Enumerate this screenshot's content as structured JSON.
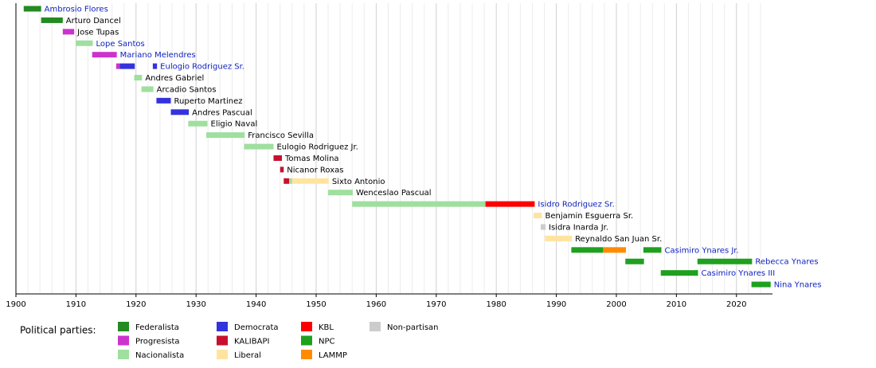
{
  "chart_data": {
    "type": "timeline",
    "xlim": [
      1900,
      2026
    ],
    "xticks": [
      1900,
      1910,
      1920,
      1930,
      1940,
      1950,
      1960,
      1970,
      1980,
      1990,
      2000,
      2010,
      2020
    ],
    "minor_xticks": [
      1902,
      1904,
      1906,
      1908,
      1912,
      1914,
      1916,
      1918,
      1922,
      1924,
      1926,
      1928,
      1932,
      1934,
      1936,
      1938,
      1942,
      1944,
      1946,
      1948,
      1952,
      1954,
      1956,
      1958,
      1962,
      1964,
      1966,
      1968,
      1972,
      1974,
      1976,
      1978,
      1982,
      1984,
      1986,
      1988,
      1992,
      1994,
      1996,
      1998,
      2002,
      2004,
      2006,
      2008,
      2012,
      2014,
      2016,
      2018,
      2022,
      2024
    ],
    "grid": true,
    "legend_title": "Political parties:",
    "parties": [
      {
        "name": "Federalista",
        "color": "#228b22"
      },
      {
        "name": "Progresista",
        "color": "#cc33cc"
      },
      {
        "name": "Nacionalista",
        "color": "#9fdf9f"
      },
      {
        "name": "Democrata",
        "color": "#3333dd"
      },
      {
        "name": "KALIBAPI",
        "color": "#c8102e"
      },
      {
        "name": "Liberal",
        "color": "#ffe4a0"
      },
      {
        "name": "KBL",
        "color": "#ff0000"
      },
      {
        "name": "NPC",
        "color": "#1fa01f"
      },
      {
        "name": "LAMMP",
        "color": "#ff8c00"
      },
      {
        "name": "Non-partisan",
        "color": "#cccccc"
      }
    ],
    "rows": [
      {
        "name": "Ambrosio Flores",
        "linked": true,
        "segments": [
          {
            "start": 1901.3,
            "end": 1904.2,
            "party": 0
          }
        ]
      },
      {
        "name": "Arturo Dancel",
        "linked": false,
        "segments": [
          {
            "start": 1904.2,
            "end": 1907.8,
            "party": 0
          }
        ]
      },
      {
        "name": "Jose Tupas",
        "linked": false,
        "segments": [
          {
            "start": 1907.8,
            "end": 1909.7,
            "party": 1
          }
        ]
      },
      {
        "name": "Lope Santos",
        "linked": true,
        "segments": [
          {
            "start": 1910,
            "end": 1912.8,
            "party": 2
          }
        ]
      },
      {
        "name": "Mariano Melendres",
        "linked": true,
        "segments": [
          {
            "start": 1912.7,
            "end": 1916.8,
            "party": 1
          }
        ]
      },
      {
        "name": "Eulogio Rodriguez Sr.",
        "linked": true,
        "segments": [
          {
            "start": 1916.7,
            "end": 1917.3,
            "party": 1
          },
          {
            "start": 1917.3,
            "end": 1919.8,
            "party": 3
          },
          {
            "start": 1922.8,
            "end": 1923.5,
            "party": 3
          }
        ]
      },
      {
        "name": "Andres Gabriel",
        "linked": false,
        "segments": [
          {
            "start": 1919.7,
            "end": 1921,
            "party": 2
          }
        ]
      },
      {
        "name": "Arcadio Santos",
        "linked": false,
        "segments": [
          {
            "start": 1920.9,
            "end": 1922.9,
            "party": 2
          }
        ]
      },
      {
        "name": "Ruperto Martinez",
        "linked": false,
        "segments": [
          {
            "start": 1923.4,
            "end": 1925.8,
            "party": 3
          }
        ]
      },
      {
        "name": "Andres Pascual",
        "linked": false,
        "segments": [
          {
            "start": 1925.8,
            "end": 1928.8,
            "party": 3
          }
        ]
      },
      {
        "name": "Eligio Naval",
        "linked": false,
        "segments": [
          {
            "start": 1928.7,
            "end": 1931.9,
            "party": 2
          }
        ]
      },
      {
        "name": "Francisco Sevilla",
        "linked": false,
        "segments": [
          {
            "start": 1931.7,
            "end": 1938.1,
            "party": 2
          }
        ]
      },
      {
        "name": "Eulogio Rodriguez Jr.",
        "linked": false,
        "segments": [
          {
            "start": 1938,
            "end": 1942.9,
            "party": 2
          }
        ]
      },
      {
        "name": "Tomas Molina",
        "linked": false,
        "segments": [
          {
            "start": 1942.9,
            "end": 1944.3,
            "party": 4
          }
        ]
      },
      {
        "name": "Nicanor Roxas",
        "linked": false,
        "segments": [
          {
            "start": 1944,
            "end": 1944.6,
            "party": 4
          }
        ]
      },
      {
        "name": "Sixto Antonio",
        "linked": false,
        "segments": [
          {
            "start": 1944.6,
            "end": 1945.5,
            "party": 4
          },
          {
            "start": 1945.5,
            "end": 1946,
            "party": 2
          },
          {
            "start": 1946,
            "end": 1952.1,
            "party": 5
          }
        ]
      },
      {
        "name": "Wenceslao Pascual",
        "linked": false,
        "segments": [
          {
            "start": 1952,
            "end": 1956.1,
            "party": 2
          }
        ]
      },
      {
        "name": "Isidro Rodriguez Sr.",
        "linked": true,
        "segments": [
          {
            "start": 1956,
            "end": 1978.2,
            "party": 2
          },
          {
            "start": 1978.2,
            "end": 1986.4,
            "party": 6
          }
        ]
      },
      {
        "name": "Benjamin Esguerra Sr.",
        "linked": false,
        "segments": [
          {
            "start": 1986.2,
            "end": 1987.6,
            "party": 5
          }
        ]
      },
      {
        "name": "Isidra Inarda Jr.",
        "linked": false,
        "segments": [
          {
            "start": 1987.4,
            "end": 1988.2,
            "party": 9
          }
        ]
      },
      {
        "name": "Reynaldo San Juan Sr.",
        "linked": false,
        "segments": [
          {
            "start": 1988.1,
            "end": 1992.6,
            "party": 5
          }
        ]
      },
      {
        "name": "Casimiro Ynares Jr.",
        "linked": true,
        "segments": [
          {
            "start": 1992.5,
            "end": 1997.8,
            "party": 7
          },
          {
            "start": 1997.8,
            "end": 2001.6,
            "party": 8
          },
          {
            "start": 2004.5,
            "end": 2007.5,
            "party": 7
          }
        ]
      },
      {
        "name": "Rebecca Ynares",
        "linked": true,
        "segments": [
          {
            "start": 2001.5,
            "end": 2004.6,
            "party": 7
          },
          {
            "start": 2013.5,
            "end": 2022.6,
            "party": 7
          }
        ]
      },
      {
        "name": "Casimiro Ynares III",
        "linked": true,
        "segments": [
          {
            "start": 2007.4,
            "end": 2013.6,
            "party": 7
          }
        ]
      },
      {
        "name": "Nina Ynares",
        "linked": true,
        "segments": [
          {
            "start": 2022.5,
            "end": 2025.7,
            "party": 7
          }
        ]
      }
    ]
  }
}
